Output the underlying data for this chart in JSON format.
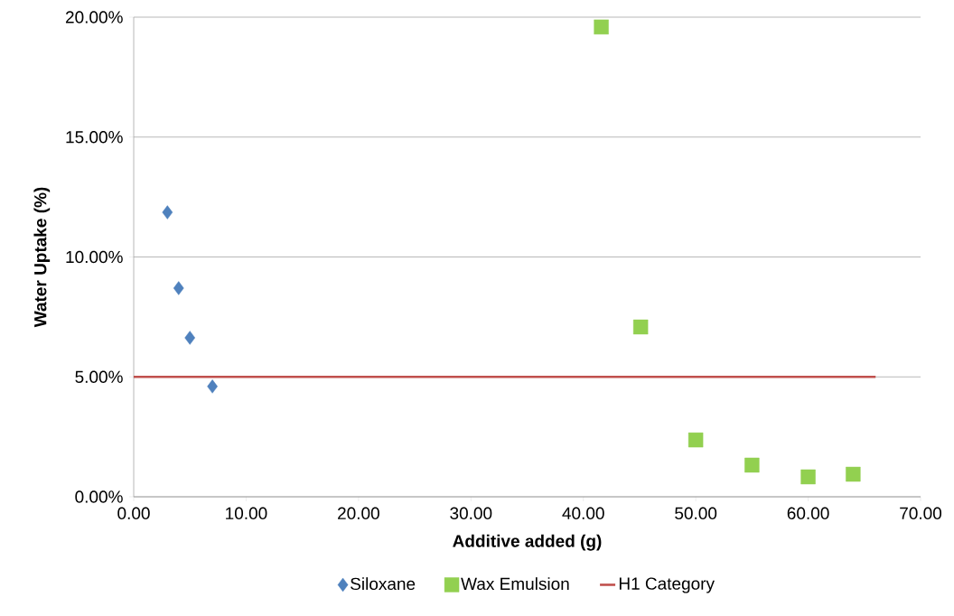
{
  "chart_data": {
    "type": "scatter",
    "xlabel": "Additive added (g)",
    "ylabel": "Water Uptake (%)",
    "xlim": [
      0,
      70
    ],
    "ylim": [
      0,
      20
    ],
    "xticks": [
      {
        "value": 0,
        "label": "0.00"
      },
      {
        "value": 10,
        "label": "10.00"
      },
      {
        "value": 20,
        "label": "20.00"
      },
      {
        "value": 30,
        "label": "30.00"
      },
      {
        "value": 40,
        "label": "40.00"
      },
      {
        "value": 50,
        "label": "50.00"
      },
      {
        "value": 60,
        "label": "60.00"
      },
      {
        "value": 70,
        "label": "70.00"
      }
    ],
    "yticks": [
      {
        "value": 0,
        "label": "0.00%"
      },
      {
        "value": 5,
        "label": "5.00%"
      },
      {
        "value": 10,
        "label": "10.00%"
      },
      {
        "value": 15,
        "label": "15.00%"
      },
      {
        "value": 20,
        "label": "20.00%"
      }
    ],
    "grid": "y",
    "legend": "bottom",
    "series": [
      {
        "name": "Siloxane",
        "marker": "diamond",
        "color": "#4f81bd",
        "x": [
          3,
          4,
          5,
          7
        ],
        "values": [
          11.86,
          8.7,
          6.63,
          4.6
        ]
      },
      {
        "name": "Wax Emulsion",
        "marker": "square",
        "color": "#92d050",
        "x": [
          41.6,
          45.1,
          50,
          55,
          60,
          64
        ],
        "values": [
          19.59,
          7.08,
          2.37,
          1.32,
          0.83,
          0.94
        ]
      },
      {
        "name": "H1 Category",
        "type": "line",
        "marker": "none",
        "line_style": "solid",
        "color": "#c0504d",
        "x": [
          0,
          66
        ],
        "values": [
          5,
          5
        ]
      }
    ]
  }
}
